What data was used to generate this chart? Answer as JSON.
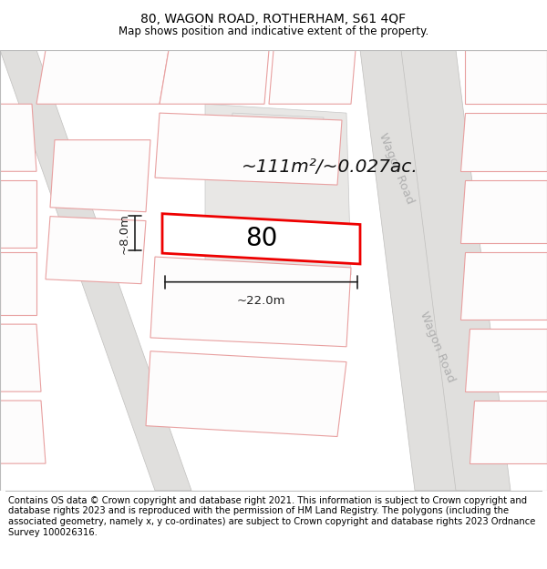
{
  "title": "80, WAGON ROAD, ROTHERHAM, S61 4QF",
  "subtitle": "Map shows position and indicative extent of the property.",
  "footer": "Contains OS data © Crown copyright and database right 2021. This information is subject to Crown copyright and database rights 2023 and is reproduced with the permission of HM Land Registry. The polygons (including the associated geometry, namely x, y co-ordinates) are subject to Crown copyright and database rights 2023 Ordnance Survey 100026316.",
  "area_text": "~111m²/~0.027ac.",
  "number_label": "80",
  "dim_width": "~22.0m",
  "dim_height": "~8.0m",
  "wagon_road_label": "Wagon Road",
  "title_fontsize": 10,
  "subtitle_fontsize": 8.5,
  "footer_fontsize": 7.2,
  "map_bg": "#f5f4f2",
  "highlight_edge": "#ee0000",
  "neighbor_edge": "#e8a0a0",
  "road_fill": "#e0dfdd",
  "road_edge": "#c0bfbd",
  "plot_gray_fill": "#e8e7e5",
  "dim_color": "#222222",
  "road_label_color": "#b0b0b0",
  "area_color": "#111111"
}
